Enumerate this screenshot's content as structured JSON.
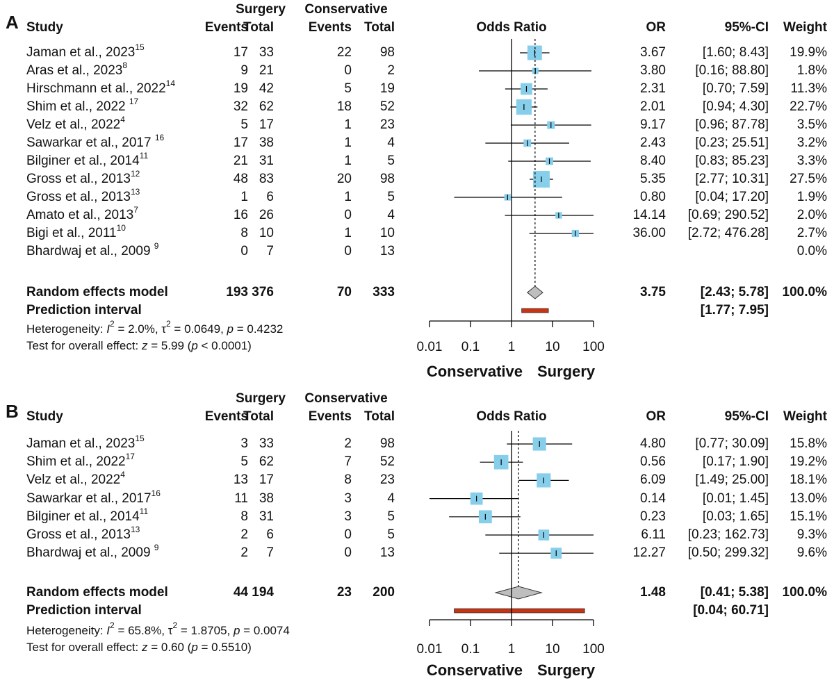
{
  "chart_data": [
    {
      "type": "forest",
      "panel_label": "A",
      "header": {
        "group1": "Surgery",
        "group2": "Conservative",
        "study": "Study",
        "events": "Events",
        "total": "Total",
        "plot_title": "Odds Ratio",
        "or": "OR",
        "ci": "95%-CI",
        "weight": "Weight"
      },
      "studies": [
        {
          "name": "Jaman et al., 2023",
          "ref": "15",
          "e1": "17",
          "n1": "33",
          "e2": "22",
          "n2": "98",
          "or": 3.67,
          "lo": 1.6,
          "hi": 8.43,
          "or_txt": "3.67",
          "ci_txt": "[1.60;   8.43]",
          "weight_txt": "19.9%",
          "weight": 19.9
        },
        {
          "name": "Aras et al., 2023",
          "ref": "8",
          "e1": "9",
          "n1": "21",
          "e2": "0",
          "n2": "2",
          "or": 3.8,
          "lo": 0.16,
          "hi": 88.8,
          "or_txt": "3.80",
          "ci_txt": "[0.16;  88.80]",
          "weight_txt": "1.8%",
          "weight": 1.8
        },
        {
          "name": "Hirschmann et al., 2022",
          "ref": "14",
          "e1": "19",
          "n1": "42",
          "e2": "5",
          "n2": "19",
          "or": 2.31,
          "lo": 0.7,
          "hi": 7.59,
          "or_txt": "2.31",
          "ci_txt": "[0.70;   7.59]",
          "weight_txt": "11.3%",
          "weight": 11.3
        },
        {
          "name": "Shim et al., 2022 ",
          "ref": "17",
          "e1": "32",
          "n1": "62",
          "e2": "18",
          "n2": "52",
          "or": 2.01,
          "lo": 0.94,
          "hi": 4.3,
          "or_txt": "2.01",
          "ci_txt": "[0.94;   4.30]",
          "weight_txt": "22.7%",
          "weight": 22.7
        },
        {
          "name": "Velz et al., 2022",
          "ref": "4",
          "e1": "5",
          "n1": "17",
          "e2": "1",
          "n2": "23",
          "or": 9.17,
          "lo": 0.96,
          "hi": 87.78,
          "or_txt": "9.17",
          "ci_txt": "[0.96;  87.78]",
          "weight_txt": "3.5%",
          "weight": 3.5
        },
        {
          "name": "Sawarkar et al., 2017 ",
          "ref": "16",
          "e1": "17",
          "n1": "38",
          "e2": "1",
          "n2": "4",
          "or": 2.43,
          "lo": 0.23,
          "hi": 25.51,
          "or_txt": "2.43",
          "ci_txt": "[0.23;  25.51]",
          "weight_txt": "3.2%",
          "weight": 3.2
        },
        {
          "name": "Bilginer et al., 2014",
          "ref": "11",
          "e1": "21",
          "n1": "31",
          "e2": "1",
          "n2": "5",
          "or": 8.4,
          "lo": 0.83,
          "hi": 85.23,
          "or_txt": "8.40",
          "ci_txt": "[0.83;  85.23]",
          "weight_txt": "3.3%",
          "weight": 3.3
        },
        {
          "name": "Gross et al., 2013",
          "ref": "12",
          "e1": "48",
          "n1": "83",
          "e2": "20",
          "n2": "98",
          "or": 5.35,
          "lo": 2.77,
          "hi": 10.31,
          "or_txt": "5.35",
          "ci_txt": "[2.77;  10.31]",
          "weight_txt": "27.5%",
          "weight": 27.5
        },
        {
          "name": "Gross et al., 2013",
          "ref": "13",
          "e1": "1",
          "n1": "6",
          "e2": "1",
          "n2": "5",
          "or": 0.8,
          "lo": 0.04,
          "hi": 17.2,
          "or_txt": "0.80",
          "ci_txt": "[0.04;  17.20]",
          "weight_txt": "1.9%",
          "weight": 1.9
        },
        {
          "name": "Amato et al., 2013",
          "ref": "7",
          "e1": "16",
          "n1": "26",
          "e2": "0",
          "n2": "4",
          "or": 14.14,
          "lo": 0.69,
          "hi": 290.52,
          "or_txt": "14.14",
          "ci_txt": "[0.69; 290.52]",
          "weight_txt": "2.0%",
          "weight": 2.0
        },
        {
          "name": "Bigi et al., 2011",
          "ref": "10",
          "e1": "8",
          "n1": "10",
          "e2": "1",
          "n2": "10",
          "or": 36.0,
          "lo": 2.72,
          "hi": 476.28,
          "or_txt": "36.00",
          "ci_txt": "[2.72; 476.28]",
          "weight_txt": "2.7%",
          "weight": 2.7
        },
        {
          "name": "Bhardwaj et al., 2009 ",
          "ref": "9",
          "e1": "0",
          "n1": "7",
          "e2": "0",
          "n2": "13",
          "or": null,
          "lo": null,
          "hi": null,
          "or_txt": "",
          "ci_txt": "",
          "weight_txt": "0.0%",
          "weight": 0
        }
      ],
      "pooled": {
        "label": "Random effects model",
        "e1": "193",
        "n1": "376",
        "e2": "70",
        "n2": "333",
        "or": 3.75,
        "lo": 2.43,
        "hi": 5.78,
        "or_txt": "3.75",
        "ci_txt": "[2.43;   5.78]",
        "weight_txt": "100.0%"
      },
      "prediction": {
        "label": "Prediction interval",
        "lo": 1.77,
        "hi": 7.95,
        "ci_txt": "[1.77;   7.95]"
      },
      "heterogeneity": {
        "pre": "Heterogeneity: ",
        "i2_sym": "I",
        "i2_sup": "2",
        "i2_val": " = 2.0%, ",
        "tau_sym": "τ",
        "tau_sup": "2",
        "tau_val": " = 0.0649, ",
        "p_sym": "p",
        "p_val": " = 0.4232"
      },
      "overall": {
        "pre": "Test for overall effect: ",
        "z_sym": "z",
        "z_val": " = 5.99 (",
        "p_sym": "p",
        "p_val": " < 0.0001)"
      },
      "axis": {
        "scale": "log",
        "ticks": [
          0.01,
          0.1,
          1,
          10,
          100
        ],
        "tick_labels": [
          "0.01",
          "0.1",
          "1",
          "10",
          "100"
        ],
        "xlim": [
          0.01,
          100
        ],
        "favors_left": "Conservative",
        "favors_right": "Surgery"
      },
      "colors": {
        "square": "#87CEEB",
        "diamond": "#BEBEBE",
        "prediction": "#CC3311"
      }
    },
    {
      "type": "forest",
      "panel_label": "B",
      "header": {
        "group1": "Surgery",
        "group2": "Conservative",
        "study": "Study",
        "events": "Events",
        "total": "Total",
        "plot_title": "Odds Ratio",
        "or": "OR",
        "ci": "95%-CI",
        "weight": "Weight"
      },
      "studies": [
        {
          "name": "Jaman et al., 2023",
          "ref": "15",
          "e1": "3",
          "n1": "33",
          "e2": "2",
          "n2": "98",
          "or": 4.8,
          "lo": 0.77,
          "hi": 30.09,
          "or_txt": "4.80",
          "ci_txt": "[0.77;  30.09]",
          "weight_txt": "15.8%",
          "weight": 15.8
        },
        {
          "name": "Shim et al., 2022",
          "ref": "17",
          "e1": "5",
          "n1": "62",
          "e2": "7",
          "n2": "52",
          "or": 0.56,
          "lo": 0.17,
          "hi": 1.9,
          "or_txt": "0.56",
          "ci_txt": "[0.17;   1.90]",
          "weight_txt": "19.2%",
          "weight": 19.2
        },
        {
          "name": "Velz et al., 2022",
          "ref": "4",
          "e1": "13",
          "n1": "17",
          "e2": "8",
          "n2": "23",
          "or": 6.09,
          "lo": 1.49,
          "hi": 25.0,
          "or_txt": "6.09",
          "ci_txt": "[1.49;  25.00]",
          "weight_txt": "18.1%",
          "weight": 18.1
        },
        {
          "name": "Sawarkar et al., 2017",
          "ref": "16",
          "e1": "11",
          "n1": "38",
          "e2": "3",
          "n2": "4",
          "or": 0.14,
          "lo": 0.01,
          "hi": 1.45,
          "or_txt": "0.14",
          "ci_txt": "[0.01;   1.45]",
          "weight_txt": "13.0%",
          "weight": 13.0
        },
        {
          "name": "Bilginer et al., 2014",
          "ref": "11",
          "e1": "8",
          "n1": "31",
          "e2": "3",
          "n2": "5",
          "or": 0.23,
          "lo": 0.03,
          "hi": 1.65,
          "or_txt": "0.23",
          "ci_txt": "[0.03;   1.65]",
          "weight_txt": "15.1%",
          "weight": 15.1
        },
        {
          "name": "Gross et al., 2013",
          "ref": "13",
          "e1": "2",
          "n1": "6",
          "e2": "0",
          "n2": "5",
          "or": 6.11,
          "lo": 0.23,
          "hi": 162.73,
          "or_txt": "6.11",
          "ci_txt": "[0.23; 162.73]",
          "weight_txt": "9.3%",
          "weight": 9.3
        },
        {
          "name": "Bhardwaj et al., 2009 ",
          "ref": "9",
          "e1": "2",
          "n1": "7",
          "e2": "0",
          "n2": "13",
          "or": 12.27,
          "lo": 0.5,
          "hi": 299.32,
          "or_txt": "12.27",
          "ci_txt": "[0.50; 299.32]",
          "weight_txt": "9.6%",
          "weight": 9.6
        }
      ],
      "pooled": {
        "label": "Random effects model",
        "e1": "44",
        "n1": "194",
        "e2": "23",
        "n2": "200",
        "or": 1.48,
        "lo": 0.41,
        "hi": 5.38,
        "or_txt": "1.48",
        "ci_txt": "[0.41;   5.38]",
        "weight_txt": "100.0%"
      },
      "prediction": {
        "label": "Prediction interval",
        "lo": 0.04,
        "hi": 60.71,
        "ci_txt": "[0.04;  60.71]"
      },
      "heterogeneity": {
        "pre": "Heterogeneity: ",
        "i2_sym": "I",
        "i2_sup": "2",
        "i2_val": " = 65.8%, ",
        "tau_sym": "τ",
        "tau_sup": "2",
        "tau_val": " = 1.8705, ",
        "p_sym": "p",
        "p_val": " = 0.0074"
      },
      "overall": {
        "pre": "Test for overall effect: ",
        "z_sym": "z",
        "z_val": " = 0.60 (",
        "p_sym": "p",
        "p_val": " = 0.5510)"
      },
      "axis": {
        "scale": "log",
        "ticks": [
          0.01,
          0.1,
          1,
          10,
          100
        ],
        "tick_labels": [
          "0.01",
          "0.1",
          "1",
          "10",
          "100"
        ],
        "xlim": [
          0.01,
          100
        ],
        "favors_left": "Conservative",
        "favors_right": "Surgery"
      },
      "colors": {
        "square": "#87CEEB",
        "diamond": "#BEBEBE",
        "prediction": "#CC3311"
      }
    }
  ]
}
